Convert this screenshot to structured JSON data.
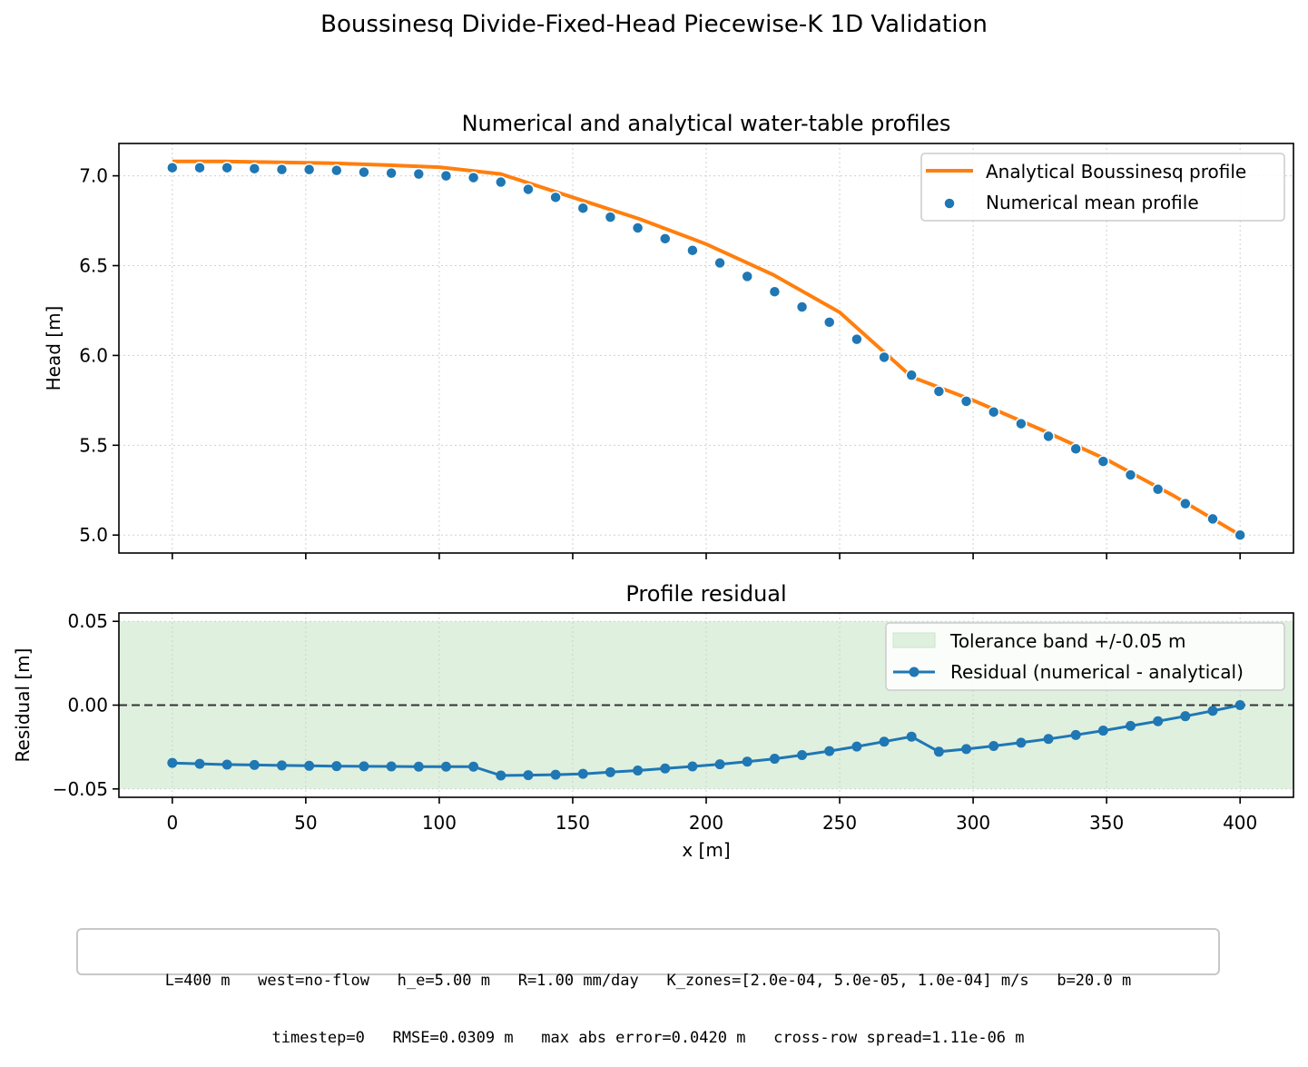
{
  "figure": {
    "suptitle": "Boussinesq Divide-Fixed-Head Piecewise-K 1D Validation",
    "info_line1": "L=400 m   west=no-flow   h_e=5.00 m   R=1.00 mm/day   K_zones=[2.0e-04, 5.0e-05, 1.0e-04] m/s   b=20.0 m",
    "info_line2": "timestep=0   RMSE=0.0309 m   max abs error=0.0420 m   cross-row spread=1.11e-06 m"
  },
  "colors": {
    "orange": "#ff7f0e",
    "blue": "#1f77b4",
    "band": "#dff0df",
    "grid": "#d0d0d0"
  },
  "chart_data": [
    {
      "type": "line",
      "title": "Numerical and analytical water-table profiles",
      "xlabel": "",
      "ylabel": "Head [m]",
      "xlim": [
        -20,
        420
      ],
      "ylim": [
        4.9,
        7.18
      ],
      "xticks": [
        0,
        50,
        100,
        150,
        200,
        250,
        300,
        350,
        400
      ],
      "yticks": [
        5.0,
        5.5,
        6.0,
        6.5,
        7.0
      ],
      "ytick_labels": [
        "5.0",
        "5.5",
        "6.0",
        "6.5",
        "7.0"
      ],
      "grid": true,
      "legend": "top-right",
      "series": [
        {
          "name": "Analytical Boussinesq profile",
          "kind": "line",
          "x": [
            0,
            20,
            40,
            60,
            80,
            100,
            123,
            150,
            175,
            200,
            225,
            250,
            277,
            300,
            325,
            350,
            375,
            400
          ],
          "y": [
            7.08,
            7.08,
            7.075,
            7.07,
            7.06,
            7.048,
            7.01,
            6.88,
            6.76,
            6.62,
            6.45,
            6.24,
            5.88,
            5.75,
            5.59,
            5.42,
            5.22,
            5.0
          ]
        },
        {
          "name": "Numerical mean profile",
          "kind": "scatter",
          "x": [
            0,
            10.26,
            20.51,
            30.77,
            41.03,
            51.28,
            61.54,
            71.79,
            82.05,
            92.31,
            102.56,
            112.82,
            123.08,
            133.33,
            143.59,
            153.85,
            164.1,
            174.36,
            184.62,
            194.87,
            205.13,
            215.38,
            225.64,
            235.9,
            246.15,
            256.41,
            266.67,
            276.92,
            287.18,
            297.44,
            307.69,
            317.95,
            328.21,
            338.46,
            348.72,
            358.97,
            369.23,
            379.49,
            389.74,
            400
          ],
          "y": [
            7.045,
            7.045,
            7.045,
            7.04,
            7.035,
            7.035,
            7.03,
            7.02,
            7.015,
            7.01,
            7.0,
            6.99,
            6.965,
            6.925,
            6.88,
            6.82,
            6.77,
            6.71,
            6.65,
            6.585,
            6.515,
            6.44,
            6.355,
            6.27,
            6.185,
            6.09,
            5.99,
            5.89,
            5.8,
            5.745,
            5.685,
            5.62,
            5.55,
            5.48,
            5.41,
            5.335,
            5.255,
            5.175,
            5.09,
            5.0
          ]
        }
      ]
    },
    {
      "type": "line",
      "title": "Profile residual",
      "xlabel": "x [m]",
      "ylabel": "Residual [m]",
      "xlim": [
        -20,
        420
      ],
      "ylim": [
        -0.055,
        0.055
      ],
      "xticks": [
        0,
        50,
        100,
        150,
        200,
        250,
        300,
        350,
        400
      ],
      "yticks": [
        -0.05,
        0.0,
        0.05
      ],
      "ytick_labels": [
        "−0.05",
        "0.00",
        "0.05"
      ],
      "grid": true,
      "legend": "top-right",
      "band": {
        "name": "Tolerance band +/-0.05 m",
        "lower": -0.05,
        "upper": 0.05
      },
      "zero_line": 0,
      "series": [
        {
          "name": "Residual (numerical - analytical)",
          "kind": "line-markers",
          "x": [
            0,
            10.26,
            20.51,
            30.77,
            41.03,
            51.28,
            61.54,
            71.79,
            82.05,
            92.31,
            102.56,
            112.82,
            123.08,
            133.33,
            143.59,
            153.85,
            164.1,
            174.36,
            184.62,
            194.87,
            205.13,
            215.38,
            225.64,
            235.9,
            246.15,
            256.41,
            266.67,
            276.92,
            287.18,
            297.44,
            307.69,
            317.95,
            328.21,
            338.46,
            348.72,
            358.97,
            369.23,
            379.49,
            389.74,
            400
          ],
          "y": [
            -0.0345,
            -0.035,
            -0.0355,
            -0.0357,
            -0.036,
            -0.0362,
            -0.0364,
            -0.0365,
            -0.0366,
            -0.0367,
            -0.0367,
            -0.0367,
            -0.042,
            -0.0418,
            -0.0415,
            -0.041,
            -0.04,
            -0.039,
            -0.0378,
            -0.0366,
            -0.0353,
            -0.0337,
            -0.032,
            -0.0298,
            -0.0274,
            -0.0247,
            -0.0218,
            -0.0188,
            -0.0278,
            -0.0262,
            -0.0244,
            -0.0224,
            -0.0202,
            -0.0178,
            -0.0152,
            -0.0124,
            -0.0096,
            -0.0066,
            -0.0034,
            0.0
          ]
        }
      ]
    }
  ]
}
